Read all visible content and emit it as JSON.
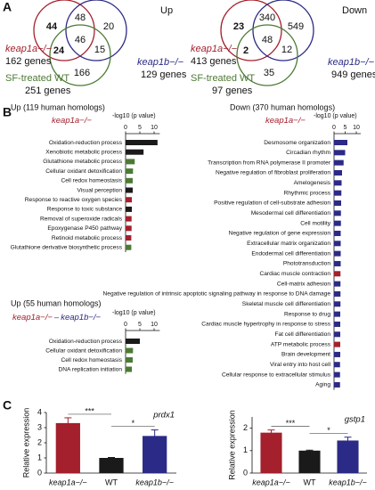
{
  "panel_a": {
    "label": "A",
    "venns": [
      {
        "title": "Up",
        "sets": [
          {
            "name": "keap1a−/−",
            "count": "162 genes",
            "color": "#a3202c"
          },
          {
            "name": "keap1b−/−",
            "count": "129 genes",
            "color": "#2b2a86"
          },
          {
            "name": "SF-treated WT",
            "count": "251 genes",
            "color": "#4c7a34"
          }
        ],
        "regions": {
          "a_only": 44,
          "ab": 48,
          "b_only": 20,
          "ac": 24,
          "abc": 46,
          "bc": 15,
          "c_only": 166
        },
        "bold": [
          "a_only",
          "ac"
        ]
      },
      {
        "title": "Down",
        "sets": [
          {
            "name": "keap1a−/−",
            "count": "413 genes",
            "color": "#a3202c"
          },
          {
            "name": "keap1b−/−",
            "count": "949 genes",
            "color": "#2b2a86"
          },
          {
            "name": "SF-treated WT",
            "count": "97 genes",
            "color": "#4c7a34"
          }
        ],
        "regions": {
          "a_only": 23,
          "ab": 340,
          "b_only": 549,
          "ac": 2,
          "abc": 48,
          "bc": 12,
          "c_only": 35
        },
        "bold": [
          "a_only",
          "ac"
        ]
      }
    ]
  },
  "panel_b": {
    "label": "B",
    "charts": [
      {
        "type": "hbar",
        "heading": "Up (119 human homologs)",
        "genotype": [
          {
            "text": "keap1a−/−",
            "color": "#a3202c"
          }
        ],
        "axis_label": "-log10 (p value)",
        "xlim": [
          0,
          12
        ],
        "xticks": [
          0,
          5,
          10
        ],
        "terms": [
          "Oxidation-reduction process",
          "Xenobiotic metabolic process",
          "Glutathione metabolic process",
          "Cellular oxidant detoxification",
          "Cell redox homeostasis",
          "Visual perception",
          "Response to reactive oxygen species",
          "Response to toxic substance",
          "Removal of superoxide radicals",
          "Epoxygenase P450 pathway",
          "Retinoid metabolic process",
          "Glutathione derivative biosynthetic process"
        ],
        "values": [
          11.2,
          6.3,
          3.2,
          2.6,
          2.5,
          2.5,
          2.2,
          2.2,
          2.1,
          2.1,
          2.0,
          2.0
        ],
        "colors": [
          "#1a1a1a",
          "#1a1a1a",
          "#4c7a34",
          "#4c7a34",
          "#4c7a34",
          "#1a1a1a",
          "#a3202c",
          "#1a1a1a",
          "#a3202c",
          "#a3202c",
          "#a3202c",
          "#4c7a34"
        ]
      },
      {
        "type": "hbar",
        "heading": "Down (370 human homologs)",
        "genotype": [
          {
            "text": "keap1a−/−",
            "color": "#a3202c"
          }
        ],
        "axis_label": "-log10 (p value)",
        "xlim": [
          0,
          12
        ],
        "xticks": [
          0,
          5,
          10
        ],
        "terms": [
          "Desmosome organization",
          "Circadian rhythm",
          "Transcription from RNA polymerase II promoter",
          "Negative regulation of fibroblast proliferation",
          "Amelogenesis",
          "Rhythmic process",
          "Positive regulation of cell-substrate adhesion",
          "Mesodermal cell differentiation",
          "Cell motility",
          "Negative regulation of gene expression",
          "Extracellular matrix organization",
          "Endodermal cell differentiation",
          "Phototransduction",
          "Cardiac muscle contraction",
          "Cell-matrix adhesion",
          "Negative regulation of intrinsic apoptotic signaling pathway in response to DNA damage",
          "Skeletal muscle cell differentiation",
          "Response to drug",
          "Cardiac muscle hypertrophy in response to stress",
          "Fat cell differentiation",
          "ATP metabolic process",
          "Brain development",
          "Viral entry into host cell",
          "Cellular response to extracellular stimulus",
          "Aging"
        ],
        "values": [
          6.0,
          5.0,
          4.3,
          3.6,
          3.4,
          3.3,
          3.2,
          3.1,
          3.1,
          3.0,
          3.0,
          3.0,
          3.0,
          2.9,
          2.9,
          2.9,
          2.9,
          2.8,
          2.8,
          2.8,
          2.8,
          2.8,
          2.7,
          2.7,
          2.7
        ],
        "colors": [
          "#2b2a86",
          "#2b2a86",
          "#2b2a86",
          "#2b2a86",
          "#2b2a86",
          "#2b2a86",
          "#2b2a86",
          "#2b2a86",
          "#2b2a86",
          "#2b2a86",
          "#2b2a86",
          "#2b2a86",
          "#2b2a86",
          "#a3202c",
          "#2b2a86",
          "#2b2a86",
          "#2b2a86",
          "#2b2a86",
          "#2b2a86",
          "#2b2a86",
          "#a3202c",
          "#2b2a86",
          "#2b2a86",
          "#2b2a86",
          "#2b2a86"
        ]
      },
      {
        "type": "hbar",
        "heading": "Up (55 human homologs)",
        "genotype": [
          {
            "text": "keap1a−/−",
            "color": "#a3202c"
          },
          {
            "text": "–",
            "color": "#2b2a86"
          },
          {
            "text": "keap1b−/−",
            "color": "#2b2a86"
          }
        ],
        "axis_label": "-log10 (p value)",
        "xlim": [
          0,
          12
        ],
        "xticks": [
          0,
          5,
          10
        ],
        "terms": [
          "Oxidation-reduction process",
          "Cellular oxidant detoxification",
          "Cell redox homeostasis",
          "DNA replication initiation"
        ],
        "values": [
          5.0,
          2.6,
          2.5,
          2.2
        ],
        "colors": [
          "#1a1a1a",
          "#4c7a34",
          "#4c7a34",
          "#4c7a34"
        ]
      }
    ]
  },
  "panel_c": {
    "label": "C",
    "charts": [
      {
        "type": "bar",
        "title": "prdx1",
        "ylabel": "Relative expression",
        "categories": [
          "keap1a−/−",
          "WT",
          "keap1b−/−"
        ],
        "values": [
          3.3,
          1.0,
          2.45
        ],
        "errors": [
          0.35,
          0.03,
          0.4
        ],
        "colors": [
          "#a3202c",
          "#1a1a1a",
          "#2b2a86"
        ],
        "ylim": [
          0,
          4
        ],
        "yticks": [
          0,
          1,
          2,
          3,
          4
        ],
        "significance": [
          {
            "pair": [
              0,
              1
            ],
            "label": "***"
          },
          {
            "pair": [
              1,
              2
            ],
            "label": "*"
          }
        ]
      },
      {
        "type": "bar",
        "title": "gstp1",
        "ylabel": "Relative expression",
        "categories": [
          "keap1a−/−",
          "WT",
          "keap1b−/−"
        ],
        "values": [
          1.8,
          1.0,
          1.45
        ],
        "errors": [
          0.12,
          0.02,
          0.15
        ],
        "colors": [
          "#a3202c",
          "#1a1a1a",
          "#2b2a86"
        ],
        "ylim": [
          0,
          2.5
        ],
        "yticks": [
          0,
          1,
          2
        ],
        "significance": [
          {
            "pair": [
              0,
              1
            ],
            "label": "***"
          },
          {
            "pair": [
              1,
              2
            ],
            "label": "*"
          }
        ]
      }
    ]
  }
}
